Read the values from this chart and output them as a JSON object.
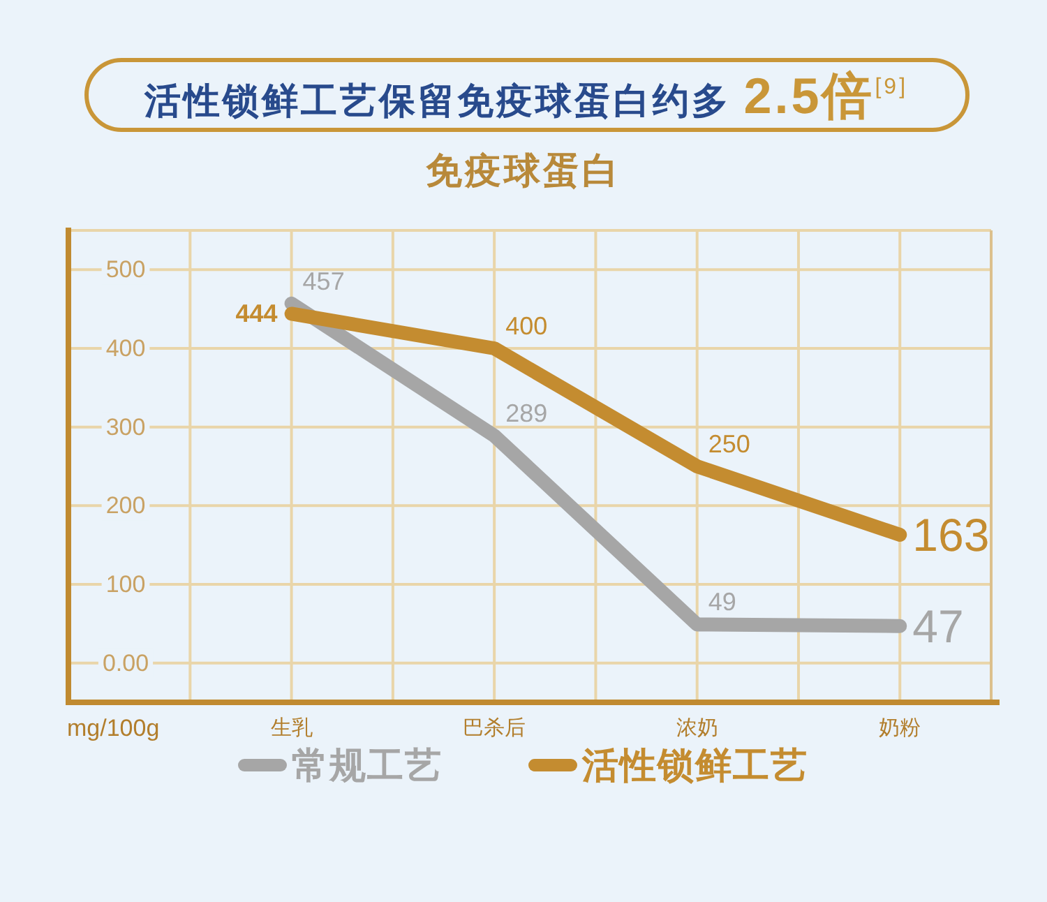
{
  "chart_data": {
    "type": "line",
    "title": "活性锁鲜工艺保留免疫球蛋白约多 2.5倍$^{[9]}$",
    "subtitle": "免疫球蛋白",
    "annotations": [
      "mg/100g"
    ],
    "categories": [
      "生乳",
      "巴杀后",
      "浓奶",
      "奶粉"
    ],
    "series": [
      {
        "name": "常规工艺",
        "color": "#a6a6a6",
        "values": [
          457,
          289,
          49,
          47
        ]
      },
      {
        "name": "活性锁鲜工艺",
        "color": "#c48c30",
        "values": [
          444,
          400,
          250,
          163
        ]
      }
    ],
    "ylim": [
      -50,
      550
    ],
    "yticks": [
      {
        "value": 0,
        "label": "0.00"
      },
      100,
      200,
      300,
      400,
      500
    ],
    "grid": true,
    "legend": "bottom",
    "data_labels": true
  }
}
